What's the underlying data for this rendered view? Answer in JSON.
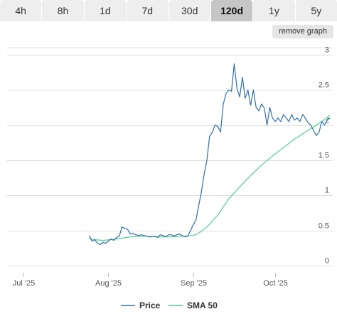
{
  "tabs": [
    {
      "label": "4h"
    },
    {
      "label": "8h"
    },
    {
      "label": "1d"
    },
    {
      "label": "7d"
    },
    {
      "label": "30d"
    },
    {
      "label": "120d",
      "active": true
    },
    {
      "label": "1y"
    },
    {
      "label": "5y"
    }
  ],
  "remove_graph_label": "remove graph",
  "colors": {
    "price": "#2f6fa7",
    "sma": "#4cd18c",
    "grid": "#e0e0e0"
  },
  "chart_data": {
    "type": "line",
    "x_ticks": [
      {
        "label": "Jul '25",
        "day": 1
      },
      {
        "label": "Aug '25",
        "day": 32
      },
      {
        "label": "Sep '25",
        "day": 63
      },
      {
        "label": "Oct '25",
        "day": 93
      }
    ],
    "xlim": [
      -5,
      114
    ],
    "ylim": [
      -0.1,
      3.1
    ],
    "y_ticks": [
      0,
      0.5,
      1,
      1.5,
      2,
      2.5,
      3
    ],
    "grid": true,
    "legend_position": "bottom-center",
    "series": [
      {
        "name": "Price",
        "x": [
          25,
          26,
          27,
          28,
          29,
          30,
          31,
          32,
          33,
          34,
          35,
          36,
          37,
          38,
          39,
          40,
          41,
          42,
          43,
          44,
          45,
          46,
          47,
          48,
          49,
          50,
          51,
          52,
          53,
          54,
          55,
          56,
          57,
          58,
          59,
          60,
          61,
          62,
          63,
          64,
          65,
          66,
          67,
          68,
          69,
          70,
          71,
          72,
          73,
          74,
          75,
          76,
          77,
          78,
          79,
          80,
          81,
          82,
          83,
          84,
          85,
          86,
          87,
          88,
          89,
          90,
          91,
          92,
          93,
          94,
          95,
          96,
          97,
          98,
          99,
          100,
          101,
          102,
          103,
          104,
          105,
          106,
          107,
          108,
          109,
          110,
          111,
          112,
          113
        ],
        "values": [
          0.43,
          0.35,
          0.37,
          0.32,
          0.3,
          0.33,
          0.32,
          0.35,
          0.38,
          0.36,
          0.4,
          0.42,
          0.55,
          0.53,
          0.52,
          0.45,
          0.46,
          0.44,
          0.43,
          0.44,
          0.43,
          0.42,
          0.41,
          0.41,
          0.42,
          0.4,
          0.44,
          0.43,
          0.41,
          0.44,
          0.44,
          0.42,
          0.44,
          0.45,
          0.43,
          0.41,
          0.42,
          0.5,
          0.58,
          0.65,
          0.85,
          1.05,
          1.3,
          1.5,
          1.84,
          1.9,
          2.0,
          1.98,
          1.9,
          2.3,
          2.45,
          2.5,
          2.48,
          2.87,
          2.52,
          2.4,
          2.68,
          2.38,
          2.5,
          2.28,
          2.5,
          2.25,
          2.2,
          2.3,
          2.24,
          2.0,
          2.25,
          2.1,
          2.05,
          2.1,
          2.05,
          2.15,
          2.1,
          2.05,
          2.15,
          2.07,
          2.1,
          2.05,
          2.15,
          2.1,
          2.03,
          2.0,
          1.92,
          1.85,
          1.9,
          2.05,
          2.0,
          2.08,
          2.1
        ]
      },
      {
        "name": "SMA 50",
        "x": [
          25,
          27,
          30,
          35,
          40,
          45,
          50,
          55,
          60,
          63,
          65,
          68,
          72,
          76,
          80,
          84,
          88,
          92,
          96,
          100,
          104,
          108,
          111,
          113
        ],
        "values": [
          0.39,
          0.37,
          0.36,
          0.38,
          0.41,
          0.42,
          0.41,
          0.41,
          0.42,
          0.43,
          0.46,
          0.55,
          0.72,
          0.95,
          1.12,
          1.28,
          1.43,
          1.56,
          1.68,
          1.8,
          1.9,
          2.0,
          2.08,
          2.14
        ]
      }
    ]
  }
}
